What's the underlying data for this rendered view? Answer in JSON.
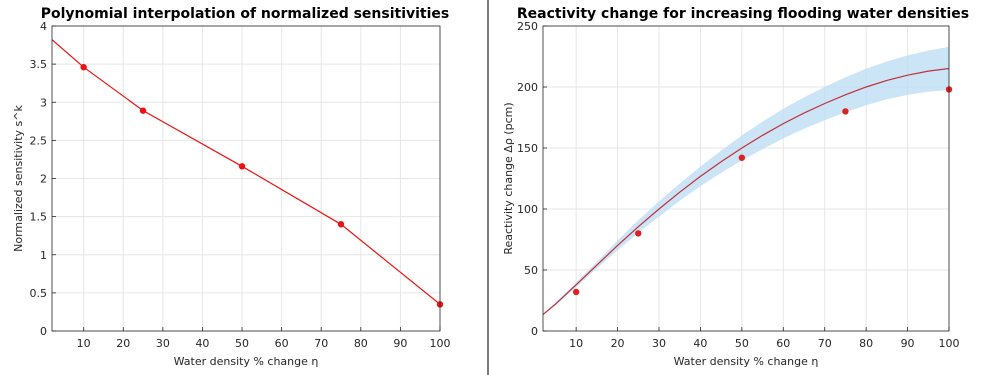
{
  "chart_data": [
    {
      "type": "line",
      "title": "Polynomial interpolation of normalized sensitivities",
      "xlabel": "Water density % change η",
      "ylabel": "Normalized sensitivity s^k",
      "xlim": [
        2,
        100
      ],
      "ylim": [
        0,
        4
      ],
      "xticks": [
        "10",
        "20",
        "30",
        "40",
        "50",
        "60",
        "70",
        "80",
        "90",
        "100"
      ],
      "yticks": [
        "0",
        "0.5",
        "1",
        "1.5",
        "2",
        "2.5",
        "3",
        "3.5",
        "4"
      ],
      "grid": true,
      "series": [
        {
          "kind": "points",
          "color": "#ee1111",
          "x": [
            10,
            25,
            50,
            75,
            100
          ],
          "y": [
            3.46,
            2.89,
            2.16,
            1.4,
            0.35
          ]
        },
        {
          "kind": "curve",
          "color": "#ee1111",
          "x": [
            2,
            10,
            25,
            50,
            75,
            100
          ],
          "y": [
            3.82,
            3.46,
            2.89,
            2.16,
            1.4,
            0.35
          ]
        }
      ]
    },
    {
      "type": "line",
      "title": "Reactivity change for increasing flooding water densities",
      "xlabel": "Water density % change η",
      "ylabel": "Reactivity change Δρ (pcm)",
      "xlim": [
        2,
        100
      ],
      "ylim": [
        0,
        250
      ],
      "xticks": [
        "10",
        "20",
        "30",
        "40",
        "50",
        "60",
        "70",
        "80",
        "90",
        "100"
      ],
      "yticks": [
        "0",
        "50",
        "100",
        "150",
        "200",
        "250"
      ],
      "grid": true,
      "series": [
        {
          "kind": "band",
          "color": "#b9dcf3",
          "x": [
            0,
            5,
            10,
            15,
            20,
            25,
            30,
            35,
            40,
            45,
            50,
            55,
            60,
            65,
            70,
            75,
            80,
            85,
            90,
            95,
            100
          ],
          "lower": [
            7.9,
            20.8,
            35.9,
            51.3,
            66.3,
            80.3,
            93.8,
            106.7,
            118.6,
            129.6,
            139.8,
            149.1,
            157.9,
            165.7,
            172.8,
            179.3,
            185.0,
            189.9,
            193.5,
            196.1,
            197.5
          ],
          "upper": [
            7.9,
            23.2,
            39.8,
            56.7,
            74.2,
            90.7,
            106.2,
            120.8,
            134.8,
            147.9,
            160.3,
            171.6,
            182.1,
            191.5,
            200.1,
            208.0,
            214.9,
            220.9,
            225.9,
            229.9,
            232.9
          ]
        },
        {
          "kind": "curve",
          "color": "#c0303a",
          "x": [
            0,
            5,
            10,
            15,
            20,
            25,
            30,
            35,
            40,
            45,
            50,
            55,
            60,
            65,
            70,
            75,
            80,
            85,
            90,
            95,
            100
          ],
          "y": [
            7.9,
            22.0,
            37.9,
            54.0,
            70.2,
            85.5,
            100.0,
            113.8,
            126.7,
            138.8,
            150.0,
            160.4,
            170.0,
            178.6,
            186.5,
            193.6,
            200.0,
            205.4,
            209.7,
            213.0,
            215.2
          ]
        },
        {
          "kind": "points",
          "color": "#e02020",
          "x": [
            10,
            25,
            50,
            75,
            100
          ],
          "y": [
            32,
            80,
            142,
            180,
            198
          ]
        }
      ]
    }
  ]
}
